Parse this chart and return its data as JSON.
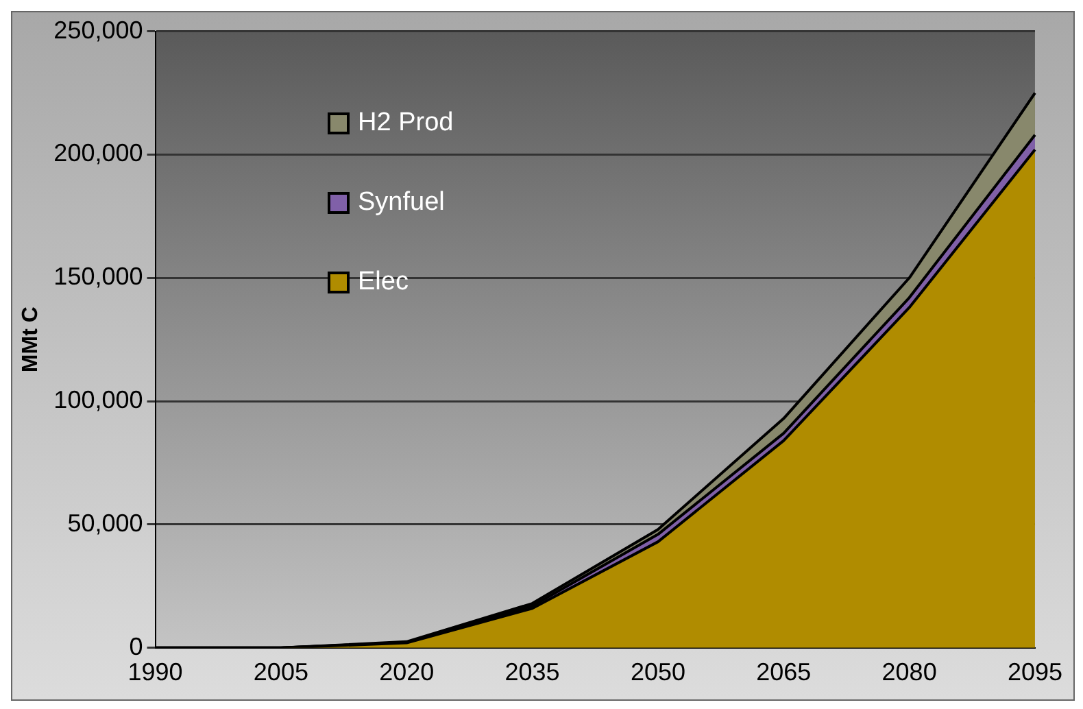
{
  "chart_data": {
    "type": "area",
    "stacked": true,
    "ylabel": "MMt C",
    "categories": [
      "1990",
      "2005",
      "2020",
      "2035",
      "2050",
      "2065",
      "2080",
      "2095"
    ],
    "series": [
      {
        "name": "Elec",
        "color": "#b08c00",
        "values": [
          0,
          0,
          2000,
          16000,
          43000,
          84000,
          138000,
          202000
        ]
      },
      {
        "name": "Synfuel",
        "color": "#8060a8",
        "values": [
          0,
          0,
          200,
          1000,
          3000,
          3000,
          4000,
          6000
        ]
      },
      {
        "name": "H2 Prod",
        "color": "#88886c",
        "values": [
          0,
          0,
          300,
          1000,
          2000,
          6000,
          8000,
          17000
        ]
      }
    ],
    "ylim": [
      0,
      250000
    ],
    "yticks": [
      {
        "value": 0,
        "label": "0"
      },
      {
        "value": 50000,
        "label": "50,000"
      },
      {
        "value": 100000,
        "label": "100,000"
      },
      {
        "value": 150000,
        "label": "150,000"
      },
      {
        "value": 200000,
        "label": "200,000"
      },
      {
        "value": 250000,
        "label": "250,000"
      }
    ],
    "grid": "y",
    "legend": "top left"
  }
}
